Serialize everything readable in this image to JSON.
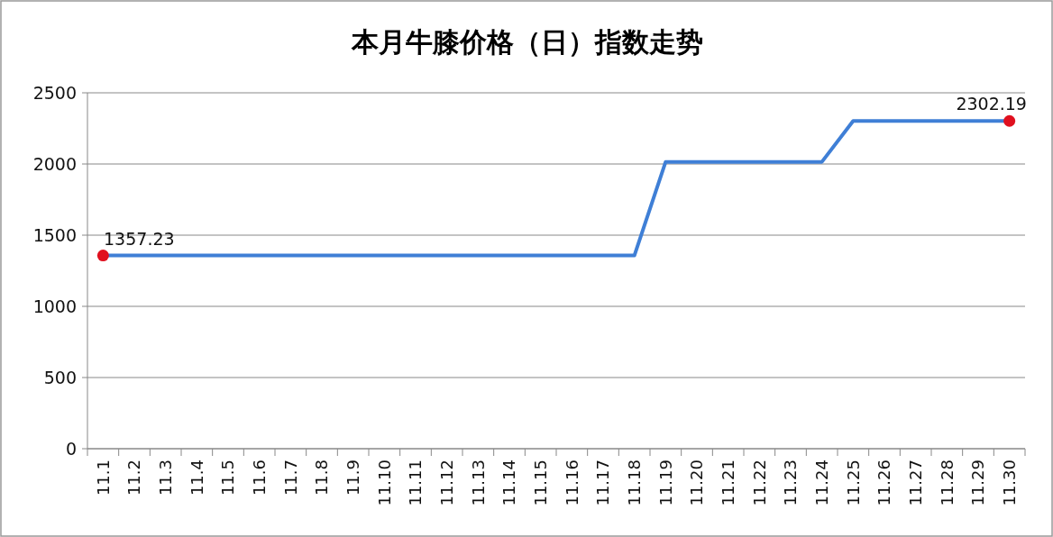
{
  "chart_data": {
    "type": "line",
    "title": "本月牛膝价格（日）指数走势",
    "categories": [
      "11.1",
      "11.2",
      "11.3",
      "11.4",
      "11.5",
      "11.6",
      "11.7",
      "11.8",
      "11.9",
      "11.10",
      "11.11",
      "11.12",
      "11.13",
      "11.14",
      "11.15",
      "11.16",
      "11.17",
      "11.18",
      "11.19",
      "11.20",
      "11.21",
      "11.22",
      "11.23",
      "11.24",
      "11.25",
      "11.26",
      "11.27",
      "11.28",
      "11.29",
      "11.30"
    ],
    "series": [
      {
        "color": "#3f7fd6",
        "marker": "none",
        "values": [
          1357.23,
          1357.23,
          1357.23,
          1357.23,
          1357.23,
          1357.23,
          1357.23,
          1357.23,
          1357.23,
          1357.23,
          1357.23,
          1357.23,
          1357.23,
          1357.23,
          1357.23,
          1357.23,
          1357.23,
          1357.23,
          2015,
          2015,
          2015,
          2015,
          2015,
          2015,
          2302.19,
          2302.19,
          2302.19,
          2302.19,
          2302.19,
          2302.19
        ]
      },
      {
        "type": "scatter",
        "color": "#e0101f",
        "marker": "circle",
        "x": [
          "11.1",
          "11.30"
        ],
        "values": [
          1357.23,
          2302.19
        ],
        "value_labels": [
          "1357.23",
          "2302.19"
        ]
      }
    ],
    "ylim": [
      0,
      2500
    ],
    "yticks": [
      0,
      500,
      1000,
      1500,
      2000,
      2500
    ],
    "grid": "y"
  }
}
